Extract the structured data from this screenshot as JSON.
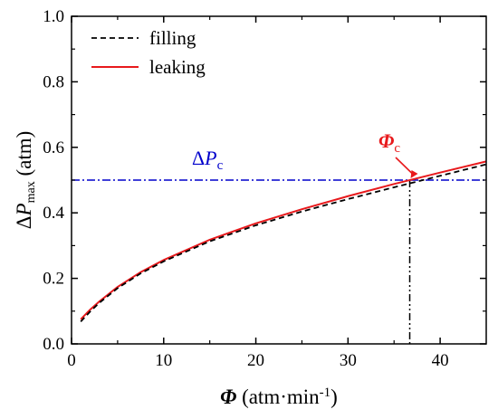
{
  "chart_data": {
    "type": "line",
    "x_axis": {
      "label_symbol": "Φ",
      "label_unit_prefix": "(atm·min",
      "label_unit_exponent": "-1",
      "label_unit_suffix": ")",
      "range": [
        0,
        45
      ],
      "ticks": [
        0,
        10,
        20,
        30,
        40
      ],
      "tick_labels": [
        "0",
        "10",
        "20",
        "30",
        "40"
      ]
    },
    "y_axis": {
      "label_delta": "Δ",
      "label_symbol": "P",
      "label_subscript": "max",
      "label_unit": "(atm)",
      "range": [
        0,
        1.0
      ],
      "ticks": [
        0,
        0.2,
        0.4,
        0.6,
        0.8,
        1.0
      ],
      "tick_labels": [
        "0.0",
        "0.2",
        "0.4",
        "0.6",
        "0.8",
        "1.0"
      ]
    },
    "grid": false,
    "legend": {
      "placement": "top-left",
      "entries": [
        {
          "label": "filling",
          "color": "#000000",
          "dash": "dashed"
        },
        {
          "label": "leaking",
          "color": "#e8191c",
          "dash": "solid"
        }
      ]
    },
    "series": [
      {
        "name": "filling",
        "color": "#000000",
        "style": "dashed",
        "x": [
          1,
          2,
          3,
          5,
          7.5,
          10,
          15,
          20,
          25,
          30,
          35,
          40,
          45
        ],
        "y": [
          0.068,
          0.098,
          0.125,
          0.17,
          0.215,
          0.252,
          0.313,
          0.362,
          0.404,
          0.442,
          0.478,
          0.513,
          0.548
        ]
      },
      {
        "name": "leaking",
        "color": "#e8191c",
        "style": "solid",
        "x": [
          1,
          2,
          3,
          5,
          7.5,
          10,
          15,
          20,
          25,
          30,
          35,
          40,
          45
        ],
        "y": [
          0.075,
          0.104,
          0.129,
          0.174,
          0.219,
          0.256,
          0.318,
          0.368,
          0.411,
          0.451,
          0.488,
          0.523,
          0.557
        ]
      }
    ],
    "reference_lines": {
      "threshold": {
        "symbol_delta": "Δ",
        "symbol": "P",
        "subscript": "c",
        "y": 0.5,
        "color": "#0000cc",
        "style": "dash-dot"
      },
      "critical": {
        "symbol": "Φ",
        "subscript": "c",
        "x": 36.7,
        "y": 0.5,
        "color": "#000000",
        "label_color": "#e8191c",
        "style": "dash-dot-dot"
      }
    }
  }
}
